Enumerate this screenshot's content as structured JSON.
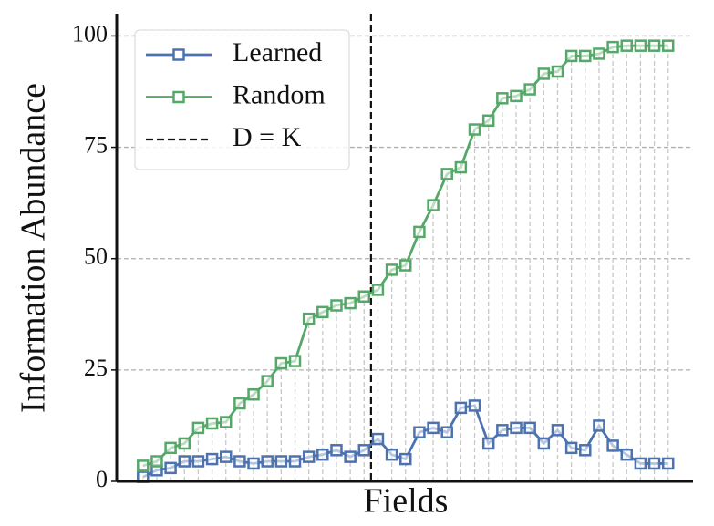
{
  "chart_data": {
    "type": "line",
    "x_label": "Fields",
    "y_label": "Information Abundance",
    "x": [
      0,
      1,
      2,
      3,
      4,
      5,
      6,
      7,
      8,
      9,
      10,
      11,
      12,
      13,
      14,
      15,
      16,
      17,
      18,
      19,
      20,
      21,
      22,
      23,
      24,
      25,
      26,
      27,
      28,
      29,
      30,
      31,
      32,
      33,
      34,
      35,
      36,
      37,
      38
    ],
    "series": [
      {
        "name": "Learned",
        "color": "#4c72b0",
        "values": [
          1,
          2.5,
          3,
          4.5,
          4.5,
          5,
          5.5,
          4.5,
          4,
          4.5,
          4.5,
          4.5,
          5.5,
          6,
          7,
          5.5,
          7,
          9.5,
          6,
          5,
          11,
          12,
          11,
          16.5,
          17,
          8.5,
          11.5,
          12,
          12,
          8.5,
          11.5,
          7.5,
          7,
          12.5,
          8,
          6,
          4,
          4,
          4
        ]
      },
      {
        "name": "Random",
        "color": "#55a868",
        "values": [
          3.5,
          4.5,
          7.5,
          8.5,
          12,
          13,
          13.3,
          17.5,
          19.5,
          22.5,
          26.5,
          27,
          36.5,
          38,
          39.5,
          40,
          41.5,
          43,
          47.5,
          48.5,
          56,
          62,
          69,
          70.5,
          79,
          81,
          86,
          86.5,
          88,
          91.5,
          92,
          95.5,
          95.5,
          96,
          97.5,
          97.8,
          97.8,
          97.8,
          97.8
        ]
      }
    ],
    "vline": {
      "x": 16.5,
      "label": "D = K",
      "color": "#111111"
    },
    "xlim": [
      -1.9,
      39.8
    ],
    "ylim": [
      0,
      105
    ],
    "yticks": [
      0,
      25,
      50,
      75,
      100
    ],
    "grid": true,
    "legend": "upper left"
  }
}
